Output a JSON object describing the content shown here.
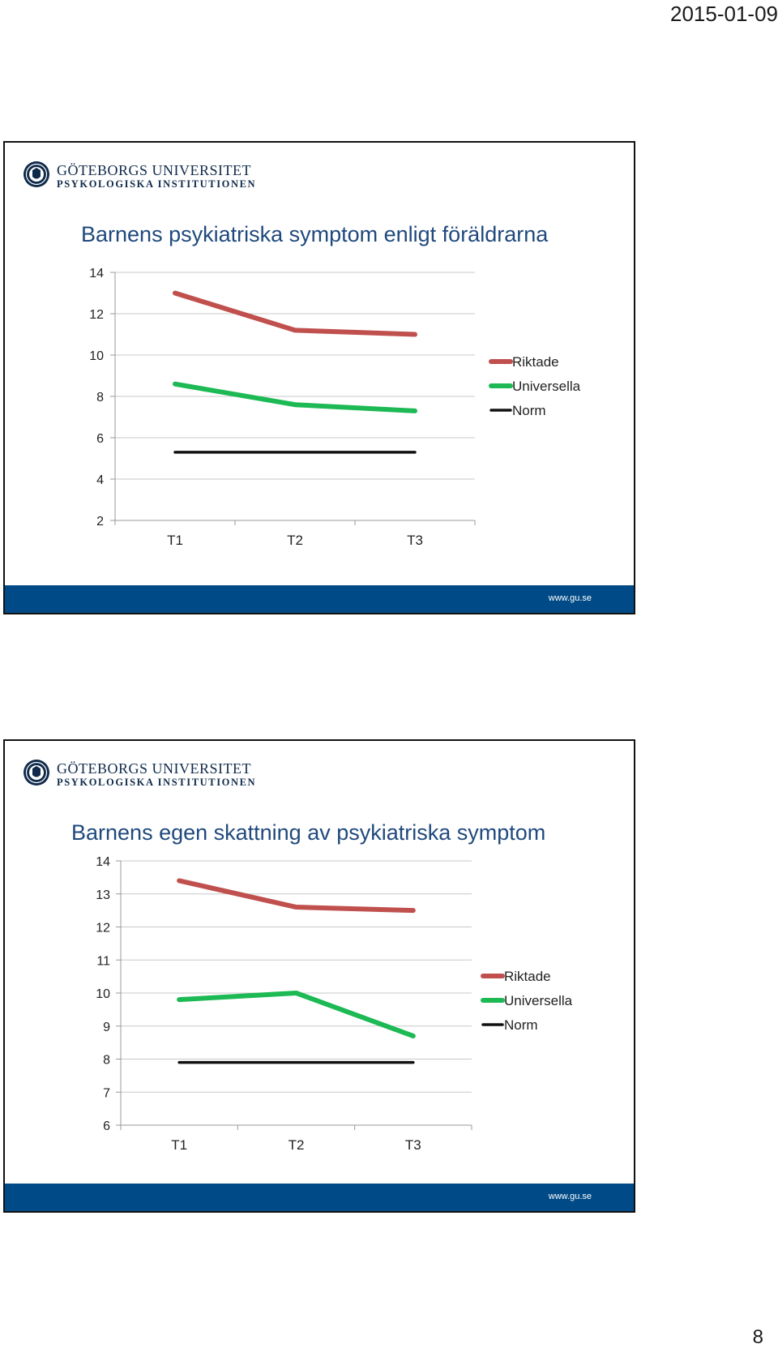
{
  "page": {
    "date": "2015-01-09",
    "page_number": "8"
  },
  "slides": [
    {
      "header": {
        "university": "GÖTEBORGS UNIVERSITET",
        "institution": "PSYKOLOGISKA INSTITUTIONEN"
      },
      "title": "Barnens psykiatriska symptom enligt föräldrarna",
      "footer_url": "www.gu.se"
    },
    {
      "header": {
        "university": "GÖTEBORGS UNIVERSITET",
        "institution": "PSYKOLOGISKA INSTITUTIONEN"
      },
      "title": "Barnens egen skattning av psykiatriska symptom",
      "footer_url": "www.gu.se"
    }
  ],
  "colors": {
    "title": "#1f497d",
    "footer": "#004b87",
    "riktade": "#c0504d",
    "universella": "#1db954",
    "norm": "#111111"
  },
  "chart_data": [
    {
      "type": "line",
      "categories": [
        "T1",
        "T2",
        "T3"
      ],
      "ylim": [
        2,
        14
      ],
      "yticks": [
        2,
        4,
        6,
        8,
        10,
        12,
        14
      ],
      "grid": true,
      "legend": "right",
      "series": [
        {
          "name": "Riktade",
          "values": [
            13.0,
            11.2,
            11.0
          ]
        },
        {
          "name": "Universella",
          "values": [
            8.6,
            7.6,
            7.3
          ]
        },
        {
          "name": "Norm",
          "values": [
            5.3,
            5.3,
            5.3
          ]
        }
      ]
    },
    {
      "type": "line",
      "categories": [
        "T1",
        "T2",
        "T3"
      ],
      "ylim": [
        6,
        14
      ],
      "yticks": [
        6,
        7,
        8,
        9,
        10,
        11,
        12,
        13,
        14
      ],
      "grid": true,
      "legend": "right",
      "series": [
        {
          "name": "Riktade",
          "values": [
            13.4,
            12.6,
            12.5
          ]
        },
        {
          "name": "Universella",
          "values": [
            9.8,
            10.0,
            8.7
          ]
        },
        {
          "name": "Norm",
          "values": [
            7.9,
            7.9,
            7.9
          ]
        }
      ]
    }
  ]
}
